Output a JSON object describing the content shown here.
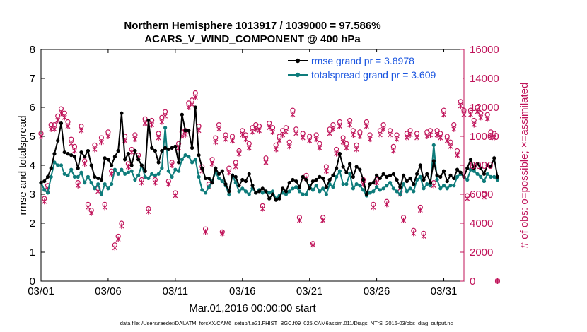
{
  "chart_data": {
    "type": "line",
    "title": "Northern Hemisphere 1013917 / 1039000 = 97.586%",
    "subtitle": "ACARS_V_WIND_COMPONENT @ 400 hPa",
    "xlabel": "Mar.01,2016 00:00:00 start",
    "ylabel": "rmse and totalspread",
    "y2label": "# of obs: o=possible; ×=assimilated",
    "footnote": "data file: /Users/raeder/DAI/ATM_forcXX/CAM6_setup/f.e21.FHIST_BGC.f09_025.CAM6assim.011/Diags_NTrS_2016-03/obs_diag_output.nc",
    "xlim": [
      0,
      31.5
    ],
    "ylim": [
      0,
      8
    ],
    "y2lim": [
      0,
      16000
    ],
    "x_tick_values": [
      0,
      5,
      10,
      15,
      20,
      25,
      30
    ],
    "x_tick_labels": [
      "03/01",
      "03/06",
      "03/11",
      "03/16",
      "03/21",
      "03/26",
      "03/31"
    ],
    "y_ticks": [
      0,
      1,
      2,
      3,
      4,
      5,
      6,
      7,
      8
    ],
    "y2_ticks": [
      0,
      2000,
      4000,
      6000,
      8000,
      10000,
      12000,
      14000,
      16000
    ],
    "x_step_days": 0.25,
    "series": [
      {
        "name": "rmse grand pr = 3.8978",
        "color": "#000000",
        "marker": "dot",
        "values": [
          3.4,
          3.45,
          3.6,
          3.9,
          4.4,
          4.85,
          5.45,
          4.45,
          4.4,
          4.35,
          4.3,
          3.9,
          4.45,
          4.3,
          4.5,
          4.0,
          3.6,
          3.55,
          3.5,
          4.25,
          4.2,
          4.0,
          4.3,
          4.5,
          5.8,
          4.2,
          4.4,
          4.0,
          4.5,
          4.2,
          4.0,
          3.8,
          5.55,
          4.6,
          4.5,
          4.1,
          4.5,
          4.6,
          4.55,
          4.6,
          4.65,
          4.1,
          5.75,
          5.2,
          5.2,
          4.6,
          6.0,
          4.35,
          3.9,
          3.55,
          3.55,
          3.4,
          3.9,
          3.7,
          3.8,
          3.35,
          3.1,
          3.65,
          3.6,
          3.3,
          3.5,
          3.45,
          3.7,
          3.3,
          3.05,
          3.1,
          3.2,
          3.1,
          2.85,
          3.0,
          2.8,
          2.85,
          3.2,
          3.1,
          3.4,
          3.5,
          3.45,
          3.25,
          3.6,
          3.5,
          3.2,
          3.45,
          3.5,
          3.6,
          3.55,
          3.25,
          3.5,
          3.65,
          3.9,
          4.4,
          3.95,
          3.75,
          4.05,
          3.6,
          3.95,
          3.85,
          3.5,
          3.0,
          3.35,
          3.4,
          3.65,
          3.55,
          3.7,
          3.6,
          3.65,
          3.7,
          3.5,
          3.25,
          3.65,
          3.45,
          3.55,
          3.35,
          3.7,
          4.0,
          3.5,
          3.7,
          3.4,
          4.15,
          3.65,
          3.6,
          3.8,
          3.45,
          3.65,
          3.55,
          3.85,
          3.75,
          3.6,
          3.9,
          4.2,
          3.9,
          4.05,
          3.9,
          3.7,
          4.0,
          3.95,
          4.25,
          3.6
        ]
      },
      {
        "name": "totalspread grand pr = 3.609",
        "color": "#0e7c7b",
        "marker": "dot",
        "values": [
          3.4,
          3.15,
          3.05,
          3.6,
          4.1,
          4.0,
          4.0,
          3.7,
          3.65,
          3.85,
          3.6,
          3.6,
          3.75,
          3.4,
          3.6,
          3.4,
          3.2,
          3.35,
          3.0,
          3.35,
          3.2,
          3.35,
          3.85,
          3.7,
          3.85,
          3.7,
          3.75,
          3.8,
          3.5,
          3.65,
          4.0,
          3.6,
          3.55,
          3.7,
          3.65,
          3.7,
          3.9,
          5.3,
          3.8,
          3.6,
          3.85,
          3.8,
          4.2,
          4.35,
          4.3,
          4.1,
          4.2,
          3.6,
          3.15,
          3.05,
          3.25,
          3.45,
          3.75,
          3.55,
          3.45,
          3.3,
          3.0,
          3.65,
          3.4,
          3.1,
          3.2,
          3.1,
          3.0,
          3.2,
          3.05,
          3.15,
          3.05,
          3.1,
          3.05,
          3.1,
          2.85,
          2.95,
          3.05,
          3.0,
          3.1,
          3.2,
          3.25,
          3.1,
          3.0,
          3.0,
          3.3,
          3.15,
          3.3,
          3.1,
          3.2,
          3.0,
          3.35,
          3.25,
          3.6,
          3.8,
          3.35,
          3.35,
          3.7,
          3.2,
          3.35,
          3.3,
          3.15,
          2.95,
          3.05,
          3.1,
          3.25,
          3.15,
          3.2,
          3.3,
          3.4,
          3.2,
          3.1,
          3.0,
          3.35,
          3.1,
          3.2,
          3.1,
          3.5,
          3.6,
          3.2,
          3.35,
          3.3,
          4.7,
          3.5,
          3.2,
          3.3,
          3.2,
          3.3,
          3.3,
          3.6,
          3.7,
          3.6,
          3.5,
          3.85,
          3.8,
          3.7,
          3.6,
          3.45,
          3.7,
          3.6,
          3.6,
          3.5
        ]
      },
      {
        "name": "possible",
        "axis": "right",
        "color": "#c0145a",
        "marker": "o",
        "values": [
          10200,
          5700,
          6600,
          10800,
          10800,
          11400,
          11900,
          11600,
          11000,
          9800,
          9300,
          6800,
          10700,
          8300,
          5300,
          4900,
          9400,
          6400,
          9900,
          5300,
          10300,
          7600,
          2500,
          3100,
          4000,
          10000,
          8100,
          9100,
          10100,
          8700,
          7000,
          11200,
          5000,
          11100,
          7000,
          10200,
          11300,
          11700,
          6900,
          8200,
          6100,
          9500,
          10300,
          10400,
          12300,
          12500,
          13000,
          10700,
          7900,
          3600,
          6700,
          8400,
          9900,
          10800,
          3400,
          10100,
          7800,
          10000,
          8200,
          9000,
          10400,
          10100,
          9500,
          10600,
          10800,
          10700,
          5200,
          8500,
          10900,
          10600,
          9400,
          10000,
          10400,
          10600,
          9600,
          11800,
          10500,
          4400,
          10200,
          7300,
          10000,
          2600,
          10100,
          9500,
          4400,
          7900,
          10500,
          10800,
          9100,
          11000,
          9900,
          9500,
          11100,
          10400,
          9400,
          10300,
          7000,
          11000,
          10100,
          5300,
          7000,
          10400,
          10800,
          5500,
          10400,
          9300,
          10100,
          6200,
          4400,
          10200,
          10400,
          3500,
          10200,
          5100,
          3300,
          10300,
          10400,
          6800,
          10400,
          10200,
          11800,
          10000,
          9600,
          10800,
          9000,
          12400,
          11800,
          5900,
          11800,
          11100,
          12000,
          11600,
          6000,
          11500,
          10300,
          10200,
          0
        ]
      },
      {
        "name": "assimilated",
        "axis": "right",
        "color": "#c0145a",
        "marker": "x",
        "values": [
          10000,
          5500,
          6300,
          10500,
          10500,
          11100,
          11600,
          11300,
          10700,
          9500,
          9000,
          6600,
          10400,
          8100,
          5100,
          4700,
          9100,
          6200,
          9600,
          5100,
          10000,
          7400,
          2300,
          2900,
          3800,
          9700,
          7900,
          8900,
          9800,
          8500,
          6800,
          10900,
          4800,
          10800,
          6800,
          9900,
          11000,
          11400,
          6700,
          8000,
          5900,
          9200,
          10000,
          10100,
          12000,
          12200,
          12700,
          10400,
          7600,
          3400,
          6500,
          8100,
          9600,
          10500,
          3300,
          9800,
          7500,
          9700,
          7900,
          8800,
          10100,
          9800,
          9200,
          10300,
          10500,
          10400,
          5000,
          8200,
          10600,
          10300,
          9100,
          9700,
          10100,
          10300,
          9300,
          11500,
          10200,
          4200,
          9900,
          7100,
          9700,
          2500,
          9800,
          9200,
          4200,
          7600,
          10200,
          10500,
          8800,
          10700,
          9600,
          9200,
          10800,
          10100,
          9100,
          10000,
          6700,
          10700,
          9800,
          5100,
          6800,
          10100,
          10500,
          5300,
          10100,
          9000,
          9800,
          6000,
          4200,
          9900,
          10100,
          3300,
          9900,
          4900,
          3100,
          10000,
          10100,
          6600,
          10100,
          9900,
          11500,
          9700,
          9300,
          10500,
          8700,
          12100,
          11500,
          5700,
          11500,
          10800,
          11700,
          11300,
          5800,
          11200,
          10000,
          9900,
          0
        ]
      }
    ]
  }
}
